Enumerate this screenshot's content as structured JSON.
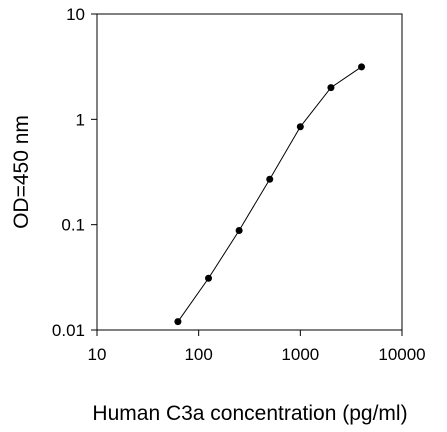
{
  "chart_data": {
    "type": "line",
    "title": "",
    "xlabel": "Human C3a concentration (pg/ml)",
    "ylabel": "OD=450 nm",
    "xscale": "log",
    "yscale": "log",
    "xlim": [
      10,
      10000
    ],
    "ylim": [
      0.01,
      10
    ],
    "xticks": [
      10,
      100,
      1000,
      10000
    ],
    "xtick_labels": [
      "10",
      "100",
      "1000",
      "10000"
    ],
    "yticks": [
      0.01,
      0.1,
      1,
      10
    ],
    "ytick_labels": [
      "0.01",
      "0.1",
      "1",
      "10"
    ],
    "grid": false,
    "legend": "none",
    "line_color": "#000000",
    "marker_color": "#000000",
    "series": [
      {
        "x": [
          62.5,
          125,
          250,
          500,
          1000,
          2000,
          4000
        ],
        "y": [
          0.012,
          0.031,
          0.088,
          0.27,
          0.85,
          2.0,
          3.15
        ]
      }
    ]
  }
}
